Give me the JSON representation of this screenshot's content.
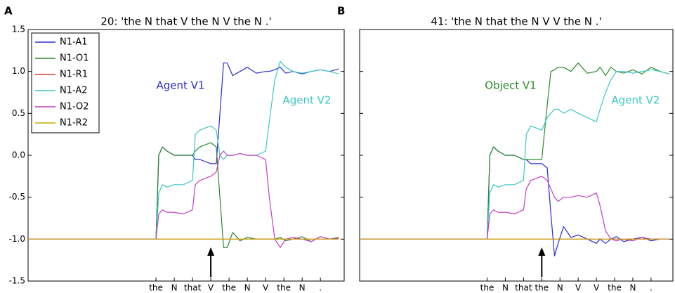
{
  "chart_data": [
    {
      "type": "line",
      "panel": "A",
      "title": "20: 'the N that V the N V the N .'",
      "x": [
        -7,
        0,
        0.15,
        0.35,
        0.6,
        1,
        1.5,
        2,
        2.15,
        2.4,
        3,
        3.3,
        3.5,
        3.7,
        3.9,
        4.2,
        4.6,
        5,
        5.5,
        6,
        6.2,
        6.5,
        6.8,
        7.1,
        7.5,
        8,
        8.5,
        9,
        9.5,
        10
      ],
      "xlim": [
        -7,
        10.3
      ],
      "xticks": [
        {
          "value": 0,
          "label": "the"
        },
        {
          "value": 1,
          "label": "N"
        },
        {
          "value": 2,
          "label": "that"
        },
        {
          "value": 3,
          "label": "V"
        },
        {
          "value": 4,
          "label": "the"
        },
        {
          "value": 5,
          "label": "N"
        },
        {
          "value": 6,
          "label": "V"
        },
        {
          "value": 7,
          "label": "the"
        },
        {
          "value": 8,
          "label": "N"
        },
        {
          "value": 9,
          "label": "."
        }
      ],
      "ylim": [
        -1.5,
        1.5
      ],
      "yticks": [
        1.5,
        {
          "value": 1,
          "label": "1.0"
        },
        0.5,
        {
          "value": 0,
          "label": "0.0"
        },
        -0.5,
        {
          "value": -1,
          "label": "-1.0"
        },
        -1.5
      ],
      "ytick_labels": true,
      "legend": "upper left",
      "series": [
        {
          "name": "N1-A1",
          "color": "#2b2bd6",
          "values": [
            -1,
            -1,
            0.0,
            0.1,
            0.05,
            0.0,
            0.0,
            0.0,
            -0.05,
            -0.05,
            -0.1,
            -0.1,
            0.5,
            1.1,
            1.1,
            0.95,
            1.0,
            1.05,
            0.98,
            1.0,
            1.0,
            1.02,
            1.05,
            0.98,
            1.0,
            0.97,
            1.0,
            1.02,
            1.0,
            1.03
          ]
        },
        {
          "name": "N1-O1",
          "color": "#2a8a2a",
          "values": [
            -1,
            -1,
            0.0,
            0.1,
            0.05,
            0.0,
            0.0,
            0.0,
            0.05,
            0.1,
            0.15,
            0.1,
            -0.5,
            -1.1,
            -1.1,
            -0.92,
            -1.02,
            -0.98,
            -1.0,
            -1.0,
            -1.0,
            -1.0,
            -0.98,
            -1.02,
            -1.0,
            -0.97,
            -1.03,
            -0.97,
            -1.0,
            -0.98
          ]
        },
        {
          "name": "N1-R1",
          "color": "#e0402a",
          "values": [
            -1,
            -1,
            -1,
            -1,
            -1,
            -1,
            -1,
            -1,
            -1,
            -1,
            -1,
            -1,
            -1,
            -1,
            -1,
            -1,
            -1,
            -1,
            -1,
            -1,
            -1,
            -1,
            -1,
            -1,
            -1,
            -1,
            -1,
            -1,
            -1,
            -1
          ]
        },
        {
          "name": "N1-A2",
          "color": "#3cc6c6",
          "values": [
            -1,
            -1,
            -0.45,
            -0.35,
            -0.38,
            -0.35,
            -0.35,
            -0.3,
            0.25,
            0.3,
            0.35,
            0.3,
            0.0,
            -0.05,
            0.0,
            0.0,
            0.02,
            0.0,
            0.0,
            0.05,
            0.4,
            0.9,
            1.12,
            1.05,
            1.0,
            0.98,
            1.0,
            1.02,
            1.0,
            0.97
          ]
        },
        {
          "name": "N1-O2",
          "color": "#c43cc4",
          "values": [
            -1,
            -1,
            -0.7,
            -0.65,
            -0.68,
            -0.68,
            -0.7,
            -0.65,
            -0.35,
            -0.3,
            -0.25,
            -0.2,
            0.0,
            0.05,
            0.0,
            0.0,
            0.02,
            0.0,
            0.0,
            -0.05,
            -0.5,
            -1.0,
            -1.1,
            -1.0,
            -0.98,
            -1.0,
            -1.03,
            -0.97,
            -1.0,
            -0.99
          ]
        },
        {
          "name": "N1-R2",
          "color": "#c8a800",
          "values": [
            -1,
            -1,
            -1,
            -1,
            -1,
            -1,
            -1,
            -1,
            -1,
            -1,
            -1,
            -1,
            -1,
            -1,
            -1,
            -1,
            -1,
            -1,
            -1,
            -1,
            -1,
            -1,
            -1,
            -1,
            -1,
            -1,
            -1,
            -1,
            -1,
            -1
          ]
        }
      ],
      "annotations": [
        {
          "text": "Agent V1",
          "color": "#2b2bd6"
        },
        {
          "text": "Agent V2",
          "color": "#3cc6c6"
        }
      ]
    },
    {
      "type": "line",
      "panel": "B",
      "title": "41: 'the N that the N V V the N .'",
      "x": [
        -7,
        0,
        0.15,
        0.35,
        0.6,
        1,
        1.5,
        2,
        2.15,
        2.4,
        3,
        3.3,
        3.5,
        3.7,
        3.9,
        4.2,
        4.6,
        5,
        5.5,
        6,
        6.2,
        6.5,
        6.8,
        7.1,
        7.5,
        8,
        8.5,
        9,
        9.5,
        10
      ],
      "xlim": [
        -7,
        10.2
      ],
      "xticks": [
        {
          "value": 0,
          "label": "the"
        },
        {
          "value": 1,
          "label": "N"
        },
        {
          "value": 2,
          "label": "that"
        },
        {
          "value": 3,
          "label": "the"
        },
        {
          "value": 4,
          "label": "N"
        },
        {
          "value": 5,
          "label": "V"
        },
        {
          "value": 6,
          "label": "V"
        },
        {
          "value": 7,
          "label": "the"
        },
        {
          "value": 8,
          "label": "N"
        },
        {
          "value": 9,
          "label": "."
        }
      ],
      "ylim": [
        -1.5,
        1.5
      ],
      "yticks": [
        1.5,
        1,
        0.5,
        0,
        -0.5,
        -1,
        -1.5
      ],
      "ytick_labels": false,
      "series": [
        {
          "name": "N1-A1",
          "color": "#2b2bd6",
          "values": [
            -1,
            -1,
            0.0,
            0.1,
            0.05,
            0.0,
            0.0,
            -0.05,
            -0.05,
            -0.1,
            -0.1,
            -0.15,
            -0.7,
            -1.2,
            -1.05,
            -0.85,
            -0.98,
            -0.95,
            -1.0,
            -1.05,
            -1.0,
            -1.05,
            -1.0,
            -0.97,
            -1.03,
            -1.0,
            -0.98,
            -1.02,
            -1.0,
            -1.0
          ]
        },
        {
          "name": "N1-O1",
          "color": "#2a8a2a",
          "values": [
            -1,
            -1,
            0.0,
            0.1,
            0.05,
            0.0,
            0.0,
            -0.05,
            -0.05,
            -0.05,
            -0.05,
            0.6,
            1.0,
            1.02,
            1.05,
            1.05,
            1.0,
            1.1,
            0.98,
            1.0,
            1.05,
            0.95,
            1.05,
            1.0,
            0.98,
            1.02,
            0.97,
            1.05,
            1.0,
            0.97
          ]
        },
        {
          "name": "N1-R1",
          "color": "#e0402a",
          "values": [
            -1,
            -1,
            -1,
            -1,
            -1,
            -1,
            -1,
            -1,
            -1,
            -1,
            -1,
            -1,
            -1,
            -1,
            -1,
            -1,
            -1,
            -1,
            -1,
            -1,
            -1,
            -1,
            -1,
            -1,
            -1,
            -1,
            -1,
            -1,
            -1,
            -1
          ]
        },
        {
          "name": "N1-A2",
          "color": "#3cc6c6",
          "values": [
            -1,
            -1,
            -0.45,
            -0.35,
            -0.38,
            -0.35,
            -0.35,
            -0.3,
            0.25,
            0.35,
            0.3,
            0.45,
            0.5,
            0.55,
            0.55,
            0.5,
            0.55,
            0.5,
            0.45,
            0.4,
            0.55,
            0.75,
            0.9,
            1.0,
            1.0,
            0.98,
            1.0,
            1.02,
            1.0,
            0.97
          ]
        },
        {
          "name": "N1-O2",
          "color": "#c43cc4",
          "values": [
            -1,
            -1,
            -0.7,
            -0.65,
            -0.68,
            -0.68,
            -0.7,
            -0.65,
            -0.4,
            -0.3,
            -0.25,
            -0.3,
            -0.4,
            -0.5,
            -0.55,
            -0.5,
            -0.5,
            -0.48,
            -0.5,
            -0.45,
            -0.6,
            -0.9,
            -1.0,
            -1.02,
            -1.0,
            -1.02,
            -0.98,
            -1.0,
            -1.0,
            -1.0
          ]
        },
        {
          "name": "N1-R2",
          "color": "#c8a800",
          "values": [
            -1,
            -1,
            -1,
            -1,
            -1,
            -1,
            -1,
            -1,
            -1,
            -1,
            -1,
            -1,
            -1,
            -1,
            -1,
            -1,
            -1,
            -1,
            -1,
            -1,
            -1,
            -1,
            -1,
            -1,
            -1,
            -1,
            -1,
            -1,
            -1,
            -1
          ]
        }
      ],
      "annotations": [
        {
          "text": "Object V1",
          "color": "#2a8a2a"
        },
        {
          "text": "Agent V2",
          "color": "#3cc6c6"
        }
      ]
    }
  ]
}
